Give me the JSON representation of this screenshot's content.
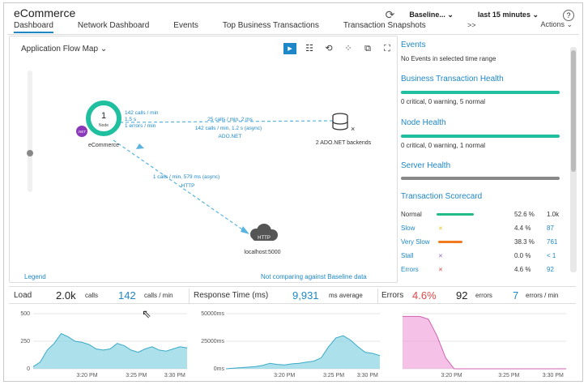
{
  "header": {
    "app_title": "eCommerce",
    "tabs": [
      {
        "label": "Dashboard",
        "active": true
      },
      {
        "label": "Network Dashboard"
      },
      {
        "label": "Events"
      },
      {
        "label": "Top Business Transactions"
      },
      {
        "label": "Transaction Snapshots"
      }
    ],
    "more_label": ">>",
    "baseline_label": "Baseline...",
    "time_range": "last 15 minutes",
    "actions_label": "Actions",
    "help_glyph": "?"
  },
  "flow_map": {
    "title": "Application Flow Map",
    "node": {
      "count": "1",
      "sub": "Node",
      "badge": ".NET",
      "name": "eCommerce"
    },
    "edge_top_src": [
      "142 calls / min",
      "1.5 s",
      "1 errors / min"
    ],
    "edge_top_dst": [
      "25 calls / min, 2 ms",
      "142 calls / min, 1.2 s (async)",
      "ADO.NET"
    ],
    "backend_label": "2 ADO.NET backends",
    "edge_http": [
      "1 calls / min, 579 ms (async)",
      "HTTP"
    ],
    "http_badge": "HTTP",
    "http_label": "localhost:5000",
    "legend_link": "Legend",
    "baseline_note": "Not comparing against Baseline data"
  },
  "right_panel": {
    "events_title": "Events",
    "events_text": "No Events in selected time range",
    "bt_title": "Business Transaction Health",
    "bt_text": "0 critical, 0 warning, 5 normal",
    "node_title": "Node Health",
    "node_text": "0 critical, 0 warning, 1 normal",
    "server_title": "Server Health",
    "scorecard_title": "Transaction Scorecard",
    "scorecard": [
      {
        "label": "Normal",
        "pct": "52.6 %",
        "count": "1.0k",
        "color": "#22bb88"
      },
      {
        "label": "Slow",
        "pct": "4.4 %",
        "count": "87",
        "color": "#f0c020"
      },
      {
        "label": "Very Slow",
        "pct": "38.3 %",
        "count": "761",
        "color": "#f07a20"
      },
      {
        "label": "Stall",
        "pct": "0.0 %",
        "count": "< 1",
        "color": "#9966cc"
      },
      {
        "label": "Errors",
        "pct": "4.6 %",
        "count": "92",
        "color": "#e04848"
      }
    ],
    "health_color": "#1fbf9f"
  },
  "metrics": {
    "load_label": "Load",
    "load_calls": "2.0k",
    "load_calls_unit": "calls",
    "load_rate": "142",
    "load_rate_unit": "calls / min",
    "rt_label": "Response Time (ms)",
    "rt_value": "9,931",
    "rt_unit": "ms average",
    "err_label": "Errors",
    "err_pct": "4.6%",
    "err_count": "92",
    "err_count_unit": "errors",
    "err_rate": "7",
    "err_rate_unit": "errors / min"
  },
  "chart_data": [
    {
      "type": "area",
      "title": "Load",
      "ytick_labels": [
        "500",
        "250",
        "0"
      ],
      "ylim": [
        0,
        500
      ],
      "xtick_labels": [
        "3:20 PM",
        "3:25 PM",
        "3:30 PM"
      ],
      "values": [
        20,
        60,
        170,
        230,
        320,
        290,
        250,
        240,
        220,
        180,
        170,
        180,
        230,
        210,
        170,
        150,
        180,
        200,
        170,
        160,
        180,
        200,
        190
      ],
      "color": "#7fd0e0"
    },
    {
      "type": "area",
      "title": "Response Time",
      "ytick_labels": [
        "50000ms",
        "25000ms",
        "0ms"
      ],
      "ylim": [
        0,
        50000
      ],
      "xtick_labels": [
        "3:20 PM",
        "3:25 PM",
        "3:30 PM"
      ],
      "values": [
        0,
        500,
        1000,
        1500,
        2000,
        3000,
        5000,
        4000,
        3500,
        4500,
        5000,
        6000,
        7000,
        10000,
        20000,
        28000,
        30000,
        26000,
        20000,
        15000,
        14000,
        12000
      ],
      "color": "#7fd0e0"
    },
    {
      "type": "area",
      "title": "Errors",
      "ytick_labels": [],
      "ylim": [
        0,
        10
      ],
      "xtick_labels": [
        "3:20 PM",
        "3:25 PM",
        "3:30 PM"
      ],
      "values": [
        9.5,
        9.5,
        9.5,
        9.0,
        6.0,
        2.0,
        0,
        0,
        0,
        0,
        0,
        0,
        0,
        0,
        0,
        0,
        0,
        0,
        0,
        0
      ],
      "color": "#f0a0d8"
    }
  ]
}
